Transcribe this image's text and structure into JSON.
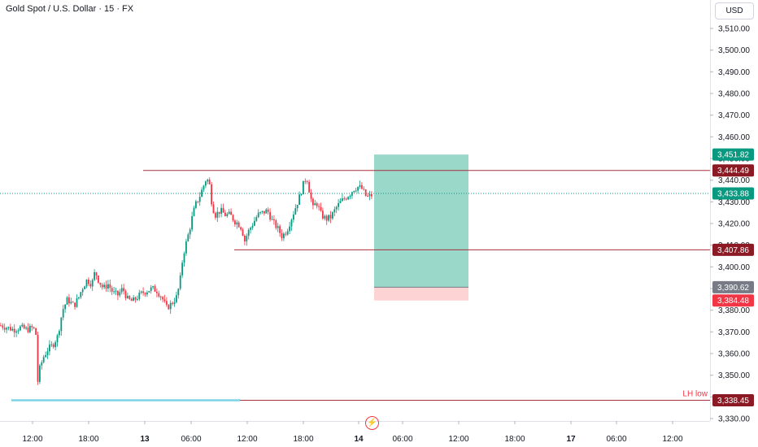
{
  "header": {
    "symbol_title": "Gold Spot / U.S. Dollar · 15 · FX",
    "currency_button": "USD"
  },
  "chart_data": {
    "type": "candlestick",
    "x_ticks": [
      "12:00",
      "18:00",
      "13",
      "06:00",
      "12:00",
      "18:00",
      "14",
      "06:00",
      "12:00",
      "18:00",
      "17",
      "06:00",
      "12:00"
    ],
    "y_ticks": [
      "3,330.00",
      "3,340.00",
      "3,350.00",
      "3,360.00",
      "3,370.00",
      "3,380.00",
      "3,390.00",
      "3,400.00",
      "3,410.00",
      "3,420.00",
      "3,430.00",
      "3,440.00",
      "3,450.00",
      "3,460.00",
      "3,470.00",
      "3,480.00",
      "3,490.00",
      "3,500.00",
      "3,510.00"
    ],
    "ylim": [
      3326,
      3518
    ],
    "up_color": "#089981",
    "down_color": "#f23645",
    "close_path": [
      [
        0,
        3373
      ],
      [
        8,
        3372
      ],
      [
        16,
        3371
      ],
      [
        24,
        3372
      ],
      [
        32,
        3371
      ],
      [
        40,
        3372
      ],
      [
        44,
        3368
      ],
      [
        46,
        3342
      ],
      [
        48,
        3353
      ],
      [
        52,
        3358
      ],
      [
        58,
        3362
      ],
      [
        64,
        3364
      ],
      [
        70,
        3368
      ],
      [
        76,
        3380
      ],
      [
        82,
        3385
      ],
      [
        90,
        3382
      ],
      [
        96,
        3386
      ],
      [
        100,
        3390
      ],
      [
        106,
        3394
      ],
      [
        112,
        3392
      ],
      [
        116,
        3398
      ],
      [
        120,
        3394
      ],
      [
        126,
        3390
      ],
      [
        132,
        3392
      ],
      [
        138,
        3388
      ],
      [
        144,
        3387
      ],
      [
        150,
        3390
      ],
      [
        156,
        3385
      ],
      [
        162,
        3384
      ],
      [
        168,
        3386
      ],
      [
        174,
        3388
      ],
      [
        180,
        3389
      ],
      [
        186,
        3390
      ],
      [
        192,
        3389
      ],
      [
        198,
        3386
      ],
      [
        204,
        3381
      ],
      [
        210,
        3383
      ],
      [
        216,
        3386
      ],
      [
        220,
        3392
      ],
      [
        224,
        3405
      ],
      [
        228,
        3411
      ],
      [
        232,
        3417
      ],
      [
        236,
        3424
      ],
      [
        240,
        3429
      ],
      [
        244,
        3432
      ],
      [
        248,
        3436
      ],
      [
        252,
        3440
      ],
      [
        256,
        3440
      ],
      [
        260,
        3428
      ],
      [
        264,
        3424
      ],
      [
        270,
        3426
      ],
      [
        276,
        3424
      ],
      [
        282,
        3424
      ],
      [
        288,
        3421
      ],
      [
        292,
        3420
      ],
      [
        296,
        3418
      ],
      [
        300,
        3412
      ],
      [
        304,
        3416
      ],
      [
        310,
        3420
      ],
      [
        316,
        3424
      ],
      [
        322,
        3425
      ],
      [
        328,
        3426
      ],
      [
        334,
        3421
      ],
      [
        340,
        3418
      ],
      [
        346,
        3414
      ],
      [
        352,
        3417
      ],
      [
        358,
        3423
      ],
      [
        364,
        3429
      ],
      [
        368,
        3433
      ],
      [
        372,
        3438
      ],
      [
        376,
        3442
      ],
      [
        380,
        3434
      ],
      [
        384,
        3427
      ],
      [
        388,
        3430
      ],
      [
        394,
        3424
      ],
      [
        400,
        3422
      ],
      [
        406,
        3423
      ],
      [
        412,
        3427
      ],
      [
        418,
        3430
      ],
      [
        424,
        3432
      ],
      [
        430,
        3434
      ],
      [
        434,
        3436
      ],
      [
        440,
        3437
      ],
      [
        444,
        3436
      ],
      [
        450,
        3432
      ],
      [
        456,
        3433
      ]
    ],
    "horizontal_lines": [
      {
        "price": 3444.49,
        "from_x": 176,
        "color": "#a8323c",
        "label": "3,444.49"
      },
      {
        "price": 3407.86,
        "from_x": 288,
        "color": "#a8323c",
        "label": "3,407.86"
      },
      {
        "price": 3338.45,
        "from_x": 295,
        "color": "#a8323c",
        "label": "3,338.45"
      },
      {
        "price": 3338.45,
        "from_x": 14,
        "to_x": 295,
        "color": "#7fd3e6",
        "label": ""
      }
    ],
    "current_price": {
      "price": 3433.88,
      "label": "3,433.88",
      "color": "#089981"
    },
    "position_tool": {
      "x_from": 460,
      "x_to": 576,
      "target": 3451.82,
      "entry": 3390.62,
      "stop": 3384.48,
      "target_label": "3,451.82",
      "entry_label": "3,390.62",
      "stop_label": "3,384.48",
      "profit_color": "#9ad8c9",
      "loss_color": "#fdd3d3",
      "target_tag_color": "#089981",
      "entry_tag_color": "#787b86",
      "stop_tag_color": "#f23645"
    },
    "annotation": {
      "text": "LH low",
      "color": "#f23645",
      "price": 3338.45
    }
  }
}
